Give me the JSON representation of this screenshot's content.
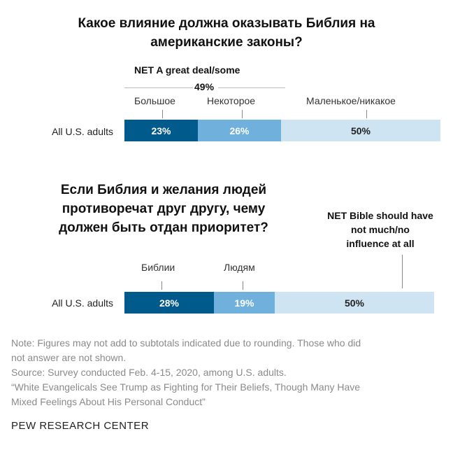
{
  "chart1": {
    "title_line1": "Какое влияние должна оказывать Библия на",
    "title_line2": "американские законы?",
    "net_label": "NET A great deal/some",
    "net_value": "49%",
    "categories": [
      "Большое",
      "Некоторое",
      "Маленькое/никакое"
    ],
    "row_label": "All U.S. adults"
  },
  "chart2": {
    "title_line1": "Если Библия и желания людей",
    "title_line2": "противоречат друг другу, чему",
    "title_line3": "должен быть отдан приоритет?",
    "net_line1": "NET Bible should have",
    "net_line2": "not much/no",
    "net_line3": "influence at all",
    "categories": [
      "Библии",
      "Людям"
    ],
    "row_label": "All U.S. adults"
  },
  "chart_data": [
    {
      "type": "bar",
      "orientation": "horizontal-stacked",
      "title": "Какое влияние должна оказывать Библия на американские законы?",
      "categories": [
        "All U.S. adults"
      ],
      "series": [
        {
          "name": "Большое",
          "values": [
            23
          ]
        },
        {
          "name": "Некоторое",
          "values": [
            26
          ]
        },
        {
          "name": "Маленькое/никакое",
          "values": [
            50
          ]
        }
      ],
      "value_labels": [
        "23%",
        "26%",
        "50%"
      ],
      "annotation": "NET A great deal/some 49%",
      "colors": [
        "#005a8c",
        "#6fb1dc",
        "#cfe4f3"
      ]
    },
    {
      "type": "bar",
      "orientation": "horizontal-stacked",
      "title": "Если Библия и желания людей противоречат друг другу, чему должен быть отдан приоритет?",
      "categories": [
        "All U.S. adults"
      ],
      "series": [
        {
          "name": "Библии",
          "values": [
            28
          ]
        },
        {
          "name": "Людям",
          "values": [
            19
          ]
        },
        {
          "name": "",
          "values": [
            50
          ]
        }
      ],
      "value_labels": [
        "28%",
        "19%",
        "50%"
      ],
      "annotation": "NET Bible should have not much/no influence at all",
      "colors": [
        "#005a8c",
        "#6fb1dc",
        "#cfe4f3"
      ]
    }
  ],
  "footer": {
    "note_line1": "Note: Figures may not add to subtotals indicated due to rounding. Those who did",
    "note_line2": "not answer are not shown.",
    "source": "Source: Survey conducted Feb. 4-15, 2020, among U.S. adults.",
    "report_line1": "“White Evangelicals See Trump as Fighting for Their Beliefs, Though Many Have",
    "report_line2": "Mixed Feelings About His Personal Conduct”",
    "brand": "PEW RESEARCH CENTER"
  }
}
